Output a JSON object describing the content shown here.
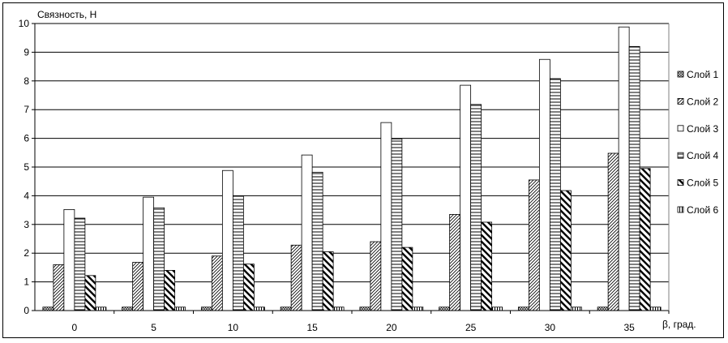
{
  "chart_data": {
    "type": "bar",
    "ylabel": "Связность, Н",
    "xlabel": "β, град.",
    "ylim": [
      0,
      10
    ],
    "yticks": [
      0,
      1,
      2,
      3,
      4,
      5,
      6,
      7,
      8,
      9,
      10
    ],
    "grid": "horizontal",
    "legend_position": "right",
    "categories": [
      "0",
      "5",
      "10",
      "15",
      "20",
      "25",
      "30",
      "35"
    ],
    "series": [
      {
        "name": "Слой 1",
        "pattern": "crosshatch-small",
        "values": [
          0.12,
          0.12,
          0.12,
          0.12,
          0.12,
          0.12,
          0.12,
          0.12
        ]
      },
      {
        "name": "Слой 2",
        "pattern": "diagonal-up",
        "values": [
          1.6,
          1.68,
          1.9,
          2.28,
          2.4,
          3.35,
          4.55,
          5.48
        ]
      },
      {
        "name": "Слой 3",
        "pattern": "solid-white",
        "values": [
          3.52,
          3.95,
          4.88,
          5.42,
          6.55,
          7.85,
          8.75,
          9.88
        ]
      },
      {
        "name": "Слой 4",
        "pattern": "horizontal-lines",
        "values": [
          3.22,
          3.58,
          3.98,
          4.82,
          5.98,
          7.18,
          8.08,
          9.2
        ]
      },
      {
        "name": "Слой 5",
        "pattern": "diagonal-down-thick",
        "values": [
          1.22,
          1.4,
          1.62,
          2.05,
          2.2,
          3.08,
          4.18,
          4.95
        ]
      },
      {
        "name": "Слой 6",
        "pattern": "vertical-lines",
        "values": [
          0.12,
          0.12,
          0.12,
          0.12,
          0.12,
          0.12,
          0.12,
          0.12
        ]
      }
    ]
  }
}
